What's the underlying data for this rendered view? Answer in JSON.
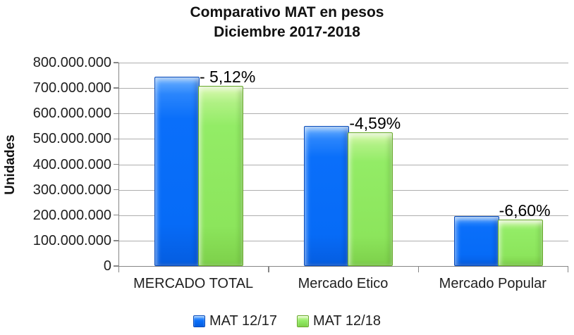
{
  "title": {
    "line1": "Comparativo MAT en pesos",
    "line2": "Diciembre 2017-2018"
  },
  "y_axis": {
    "label": "Unidades",
    "ticks": [
      "800.000.000",
      "700.000.000",
      "600.000.000",
      "500.000.000",
      "400.000.000",
      "300.000.000",
      "200.000.000",
      "100.000.000",
      "0"
    ]
  },
  "x_axis": {
    "categories": [
      "MERCADO TOTAL",
      "Mercado Etico",
      "Mercado Popular"
    ]
  },
  "legend": {
    "items": [
      {
        "label": "MAT 12/17",
        "color": "#0a6ffa"
      },
      {
        "label": "MAT 12/18",
        "color": "#8ce55c"
      }
    ]
  },
  "chart_data": {
    "type": "bar",
    "title": "Comparativo MAT en pesos Diciembre 2017-2018",
    "ylabel": "Unidades",
    "xlabel": "",
    "ylim": [
      0,
      800000000
    ],
    "grid": true,
    "legend_position": "bottom",
    "categories": [
      "MERCADO TOTAL",
      "Mercado Etico",
      "Mercado Popular"
    ],
    "series": [
      {
        "name": "MAT 12/17",
        "color": "#0a6ffa",
        "values": [
          740000000,
          545000000,
          190000000
        ]
      },
      {
        "name": "MAT 12/18",
        "color": "#8ce55c",
        "values": [
          702000000,
          520000000,
          177500000
        ]
      }
    ],
    "annotations": [
      {
        "category": "MERCADO TOTAL",
        "text": "- 5,12%"
      },
      {
        "category": "Mercado Etico",
        "text": "-4,59%"
      },
      {
        "category": "Mercado Popular",
        "text": "-6,60%"
      }
    ]
  }
}
